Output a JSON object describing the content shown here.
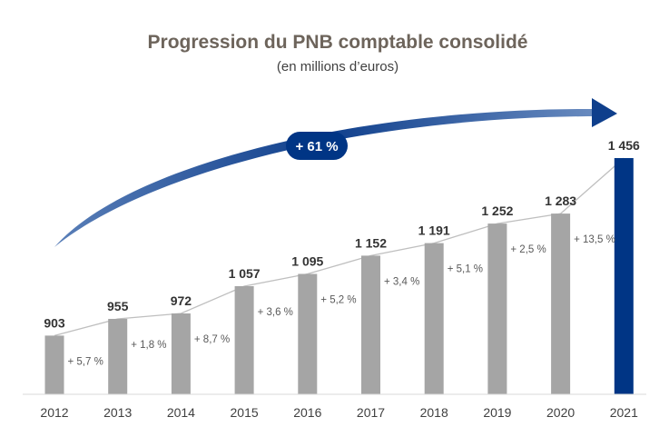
{
  "chart_data": {
    "type": "bar",
    "title": "Progression du PNB comptable consolidé",
    "subtitle": "(en millions d’euros)",
    "categories": [
      "2012",
      "2013",
      "2014",
      "2015",
      "2016",
      "2017",
      "2018",
      "2019",
      "2020",
      "2021"
    ],
    "values": [
      903,
      955,
      972,
      1057,
      1095,
      1152,
      1191,
      1252,
      1283,
      1456
    ],
    "value_labels": [
      "903",
      "955",
      "972",
      "1 057",
      "1 095",
      "1 152",
      "1 191",
      "1 252",
      "1 283",
      "1 456"
    ],
    "growth_labels": [
      "+ 5,7 %",
      "+ 1,8 %",
      "+ 8,7 %",
      "+ 3,6 %",
      "+ 5,2 %",
      "+ 3,4 %",
      "+ 5,1 %",
      "+ 2,5 %",
      "+ 13,5 %"
    ],
    "total_growth_label": "+ 61 %",
    "ylim": [
      720,
      1500
    ],
    "grid": false,
    "legend": "none",
    "colors": {
      "bar": "#a5a5a5",
      "highlight_bar": "#003585",
      "connector": "#bfbfbf",
      "arrow": "#003585",
      "title": "#6d645b"
    },
    "highlight_index": 9
  }
}
